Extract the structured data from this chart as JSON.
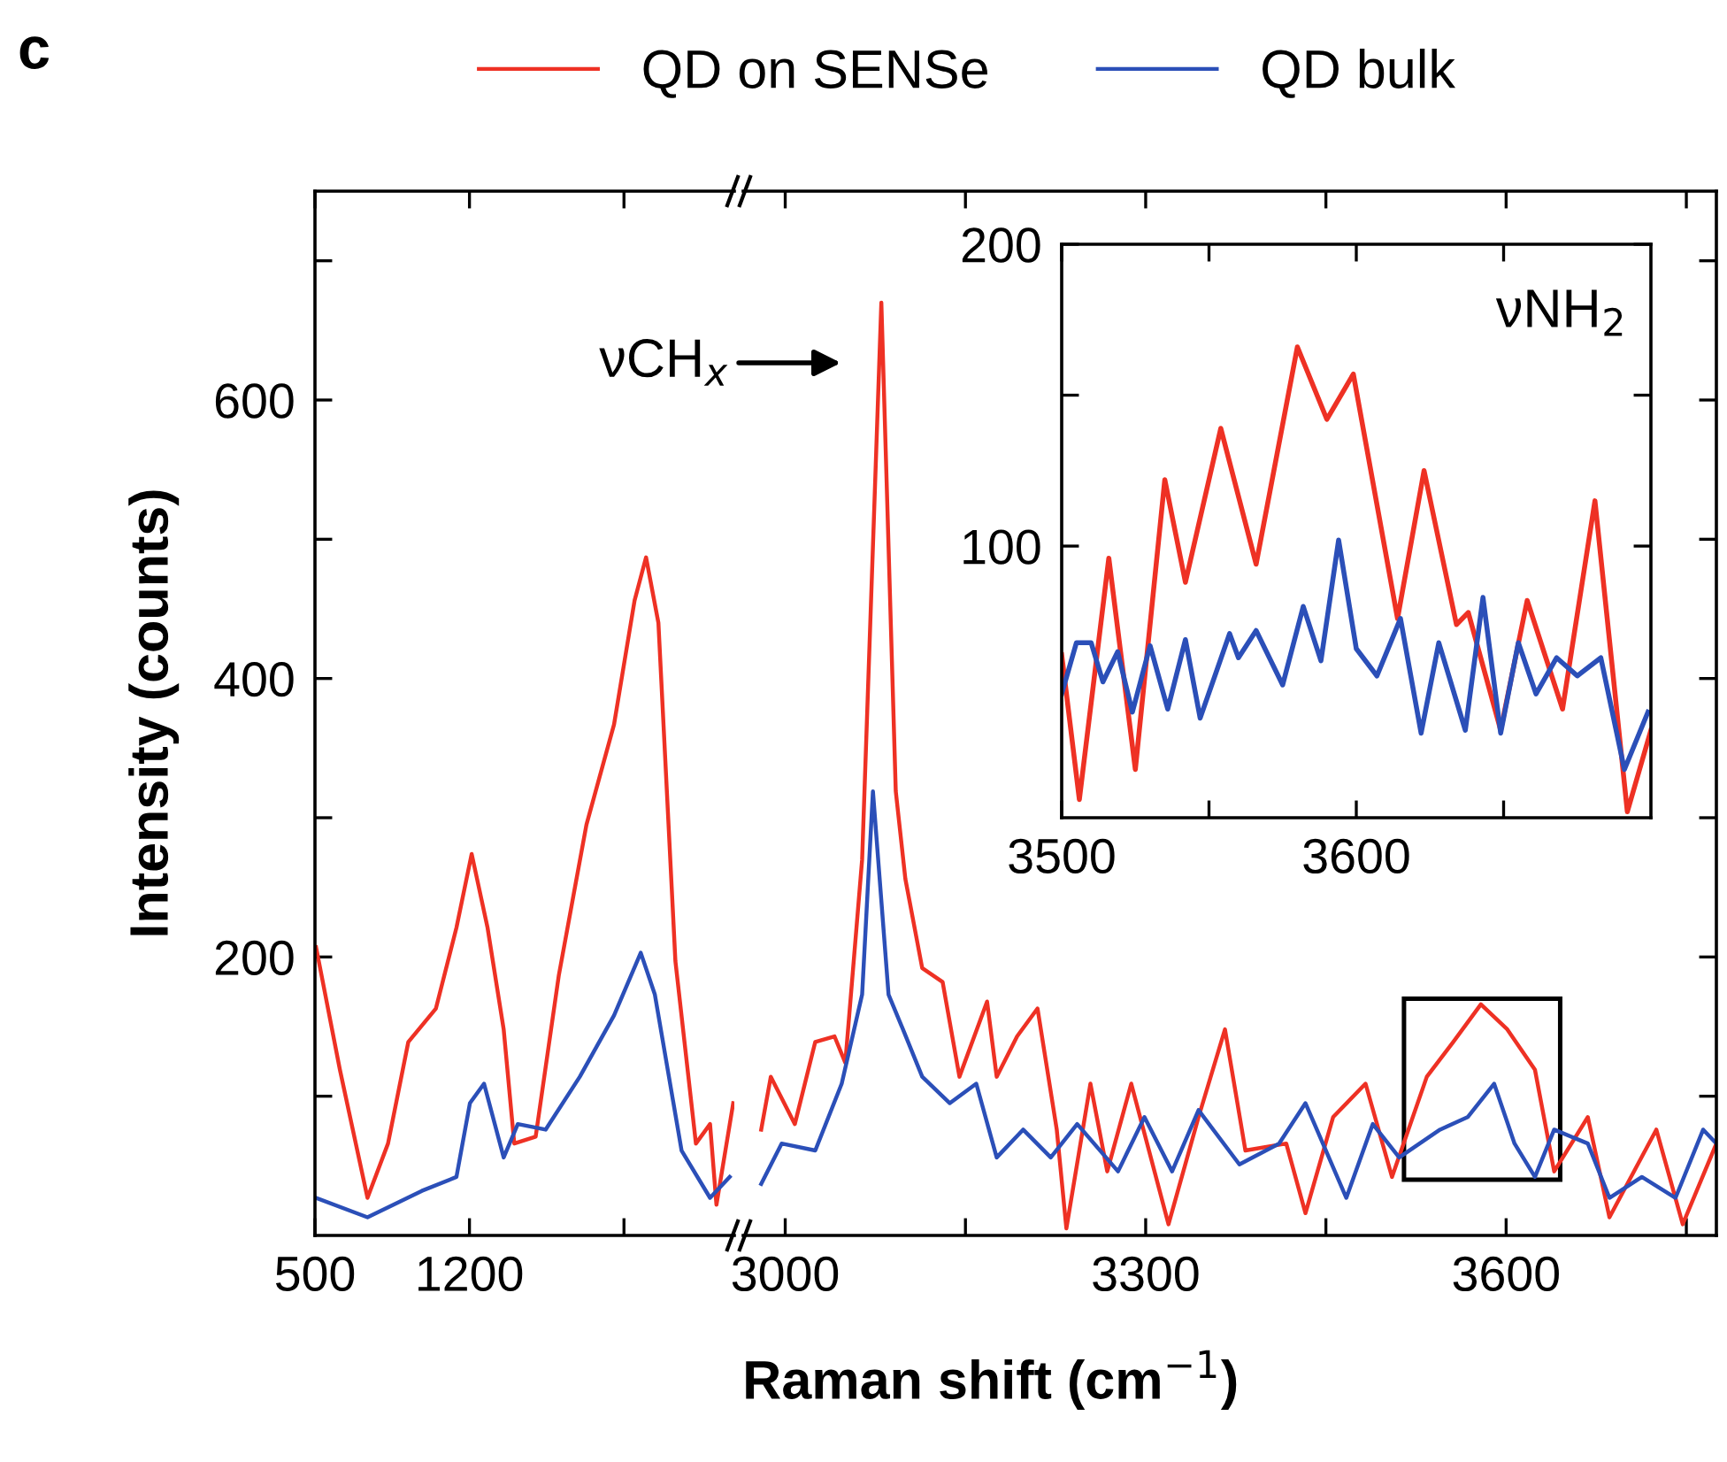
{
  "chart_data": [
    {
      "type": "line",
      "xlim": [
        500,
        2400
      ],
      "ylim": [
        0,
        750
      ],
      "xticks": [
        500,
        1200,
        {
          "value": 1900,
          "label": null
        }
      ],
      "yticks": [
        {
          "value": 100,
          "label": null
        },
        200,
        {
          "value": 300,
          "label": null
        },
        400,
        {
          "value": 500,
          "label": null
        },
        600,
        {
          "value": 700,
          "label": null
        }
      ],
      "ylabel": "Intensity (counts)",
      "legend": "top",
      "annotations": [
        "c"
      ],
      "series": [
        {
          "name": "QD on SENSe",
          "color": "#ee3124",
          "x": [
            505,
            613,
            738,
            831,
            923,
            1048,
            1141,
            1210,
            1282,
            1355,
            1403,
            1500,
            1605,
            1730,
            1855,
            1948,
            2000,
            2056,
            2133,
            2226,
            2290,
            2319,
            2395
          ],
          "values": [
            207,
            119,
            27,
            66,
            139,
            163,
            221,
            274,
            221,
            148,
            66,
            71,
            187,
            295,
            367,
            456,
            487,
            440,
            197,
            66,
            80,
            22,
            95
          ]
        },
        {
          "name": "QD bulk",
          "color": "#2b4fb8",
          "x": [
            505,
            738,
            984,
            1141,
            1202,
            1266,
            1355,
            1419,
            1545,
            1700,
            1855,
            1976,
            2040,
            2161,
            2290,
            2379
          ],
          "values": [
            27,
            13,
            32,
            42,
            95,
            109,
            56,
            80,
            76,
            114,
            158,
            203,
            173,
            61,
            27,
            42
          ]
        }
      ]
    },
    {
      "type": "line",
      "xlim": [
        2965,
        3775
      ],
      "ylim": [
        0,
        750
      ],
      "xticks": [
        3000,
        {
          "value": 3150,
          "label": null
        },
        3300,
        {
          "value": 3450,
          "label": null
        },
        3600,
        {
          "value": 3750,
          "label": null
        }
      ],
      "yticks": [
        {
          "value": 100,
          "label": null
        },
        200,
        {
          "value": 300,
          "label": null
        },
        400,
        {
          "value": 500,
          "label": null
        },
        600,
        {
          "value": 700,
          "label": null
        }
      ],
      "tick_labels": "x",
      "xlabel": "Raman shift (cm$^{−1}$)",
      "annotations": [
        "νCH$_{x}$"
      ],
      "series": [
        {
          "color": "#ee3124",
          "x": [
            2980,
            2988,
            3008,
            3025,
            3041,
            3050,
            3064,
            3080,
            3092,
            3100,
            3114,
            3131,
            3145,
            3168,
            3176,
            3193,
            3210,
            3226,
            3234,
            3254,
            3268,
            3288,
            3319,
            3344,
            3366,
            3383,
            3417,
            3433,
            3456,
            3483,
            3505,
            3534,
            3556,
            3579,
            3601,
            3624,
            3640,
            3668,
            3686,
            3725,
            3747,
            3775
          ],
          "values": [
            76,
            114,
            80,
            139,
            143,
            124,
            270,
            670,
            319,
            256,
            192,
            182,
            114,
            168,
            114,
            143,
            163,
            76,
            5,
            109,
            46,
            109,
            8,
            85,
            148,
            61,
            66,
            16,
            85,
            109,
            42,
            114,
            139,
            166,
            148,
            119,
            46,
            85,
            13,
            76,
            8,
            66
          ]
        },
        {
          "color": "#2b4fb8",
          "x": [
            2980,
            2997,
            3025,
            3047,
            3064,
            3073,
            3086,
            3098,
            3114,
            3137,
            3159,
            3176,
            3198,
            3221,
            3243,
            3277,
            3299,
            3322,
            3344,
            3378,
            3411,
            3433,
            3467,
            3489,
            3511,
            3545,
            3568,
            3590,
            3607,
            3624,
            3640,
            3668,
            3686,
            3713,
            3741,
            3764,
            3775
          ],
          "values": [
            37,
            66,
            61,
            109,
            173,
            319,
            173,
            148,
            114,
            95,
            109,
            56,
            76,
            56,
            80,
            46,
            85,
            46,
            90,
            51,
            66,
            95,
            27,
            80,
            56,
            76,
            85,
            109,
            66,
            42,
            76,
            66,
            27,
            42,
            27,
            76,
            66
          ]
        }
      ]
    },
    {
      "type": "line",
      "xlim": [
        3500,
        3700
      ],
      "ylim": [
        10,
        200
      ],
      "xticks": [
        3500,
        {
          "value": 3550,
          "label": null
        },
        3600,
        {
          "value": 3650,
          "label": null
        }
      ],
      "yticks": [
        100,
        {
          "value": 150,
          "label": null
        },
        200
      ],
      "annotations": [
        "νNH$_{2}$"
      ],
      "series": [
        {
          "color": "#ee3124",
          "x": [
            3500,
            3506,
            3516,
            3525,
            3535,
            3542,
            3554,
            3566,
            3580,
            3590,
            3599,
            3614,
            3623,
            3634,
            3638,
            3649,
            3658,
            3670,
            3681,
            3692,
            3700
          ],
          "values": [
            64,
            16,
            96,
            26,
            122,
            88,
            139,
            94,
            166,
            142,
            157,
            76,
            125,
            74,
            78,
            39,
            82,
            46,
            115,
            12,
            39
          ]
        },
        {
          "color": "#2b4fb8",
          "x": [
            3500,
            3505,
            3510,
            3514,
            3519,
            3524,
            3530,
            3536,
            3542,
            3547,
            3557,
            3560,
            3566,
            3575,
            3582,
            3588,
            3594,
            3600,
            3607,
            3615,
            3622,
            3628,
            3637,
            3643,
            3649,
            3655,
            3661,
            3668,
            3675,
            3683,
            3691,
            3699
          ],
          "values": [
            51,
            68,
            68,
            55,
            65,
            45,
            67,
            46,
            69,
            43,
            71,
            63,
            72,
            54,
            80,
            62,
            102,
            66,
            57,
            76,
            38,
            68,
            39,
            83,
            38,
            68,
            51,
            63,
            57,
            63,
            26,
            45
          ]
        }
      ]
    }
  ]
}
